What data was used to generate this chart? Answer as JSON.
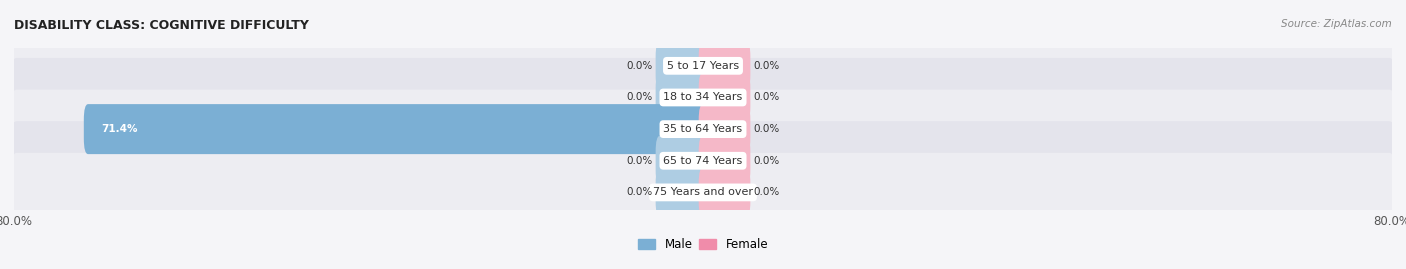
{
  "title": "DISABILITY CLASS: COGNITIVE DIFFICULTY",
  "source": "Source: ZipAtlas.com",
  "categories": [
    "5 to 17 Years",
    "18 to 34 Years",
    "35 to 64 Years",
    "65 to 74 Years",
    "75 Years and over"
  ],
  "male_values": [
    0.0,
    0.0,
    71.4,
    0.0,
    0.0
  ],
  "female_values": [
    0.0,
    0.0,
    0.0,
    0.0,
    0.0
  ],
  "x_min": -80.0,
  "x_max": 80.0,
  "male_color": "#7bafd4",
  "female_color": "#f08caa",
  "male_color_light": "#aecde3",
  "female_color_light": "#f5b8c8",
  "row_bg_even": "#ededf2",
  "row_bg_odd": "#e4e4ec",
  "label_color": "#333333",
  "title_color": "#222222",
  "axis_label_color": "#555555",
  "min_stub": 5.0,
  "background_color": "#f5f5f8"
}
